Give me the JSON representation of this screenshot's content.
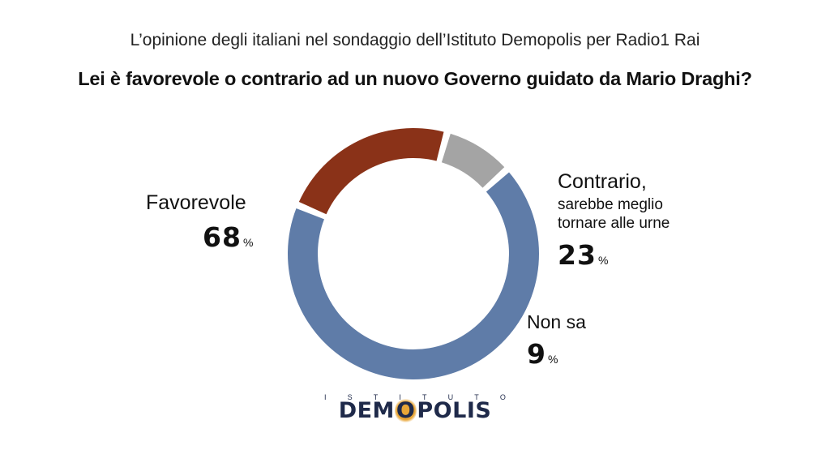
{
  "header": {
    "subtitle": "L’opinione degli italiani nel sondaggio dell’Istituto Demopolis per Radio1 Rai",
    "title": "Lei è favorevole o contrario ad un nuovo Governo guidato da Mario Draghi?"
  },
  "chart_data": {
    "type": "pie",
    "variant": "donut",
    "unit": "%",
    "slices": [
      {
        "name": "Favorevole",
        "sublabel": "",
        "value": 68,
        "value_text": "68",
        "color": "#5f7ca8"
      },
      {
        "name": "Contrario,",
        "sublabel": "sarebbe meglio tornare alle urne",
        "sublabel_line1": "sarebbe meglio",
        "sublabel_line2": "tornare alle urne",
        "value": 23,
        "value_text": "23",
        "color": "#8a3218"
      },
      {
        "name": "Non sa",
        "sublabel": "",
        "value": 9,
        "value_text": "9",
        "color": "#a4a4a4"
      }
    ]
  },
  "logo": {
    "top_letters": [
      "I",
      "S",
      "T",
      "I",
      "T",
      "U",
      "T",
      "O"
    ],
    "main_text_pre": "DEM",
    "main_text_o": "O",
    "main_text_post": "POLIS",
    "primary_color": "#1f2a4a",
    "accent_color": "#e8a637"
  }
}
